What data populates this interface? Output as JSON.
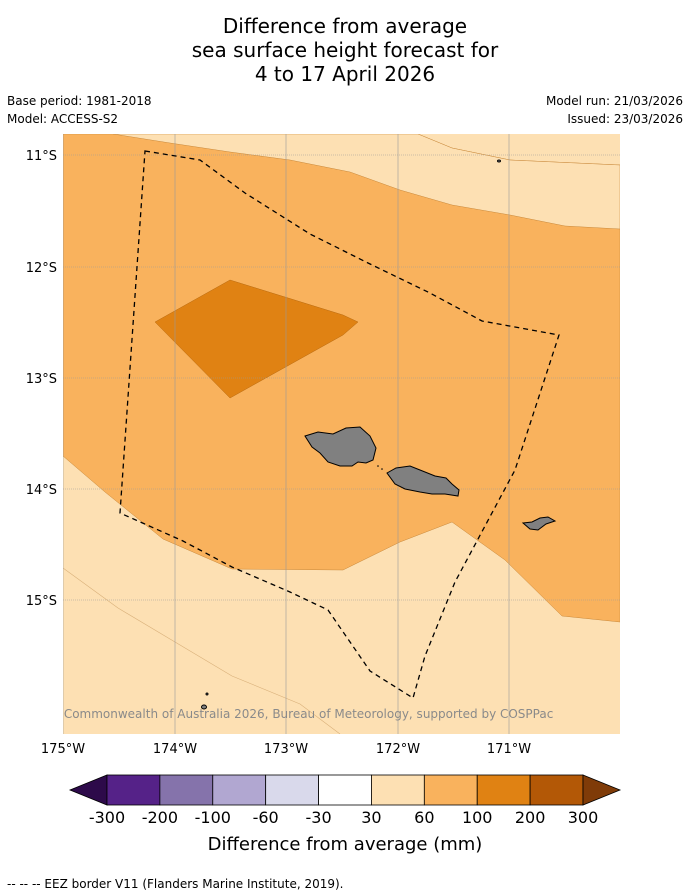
{
  "title": {
    "line1": "Difference from average",
    "line2": "sea surface height forecast for",
    "line3": "4 to 17 April 2026"
  },
  "meta": {
    "base_period": "Base period: 1981-2018",
    "model": "Model: ACCESS-S2",
    "model_run": "Model run: 21/03/2026",
    "issued": "Issued: 23/03/2026"
  },
  "map": {
    "lat_labels": [
      "11°S",
      "12°S",
      "13°S",
      "14°S",
      "15°S"
    ],
    "lon_labels": [
      "175°W",
      "174°W",
      "173°W",
      "172°W",
      "171°W"
    ],
    "copyright": "© Commonwealth of Australia 2026, Bureau of Meteorology, supported by COSPPac",
    "land_color": "#808080",
    "eez_color": "#000000"
  },
  "colorbar": {
    "title": "Difference from average (mm)",
    "tick_labels": [
      "-300",
      "-200",
      "-100",
      "-60",
      "-30",
      "30",
      "60",
      "100",
      "200",
      "300"
    ],
    "bin_colors": [
      "#552288",
      "#8573ab",
      "#b1a7d1",
      "#d9d9eb",
      "#ffffff",
      "#fde0b3",
      "#f9b25d",
      "#e08213",
      "#b35806"
    ],
    "under_color": "#2d0a4a",
    "over_color": "#7f3b08"
  },
  "footer": {
    "legend": "-- -- -- EEZ border V11 (Flanders Marine Institute, 2019)."
  }
}
